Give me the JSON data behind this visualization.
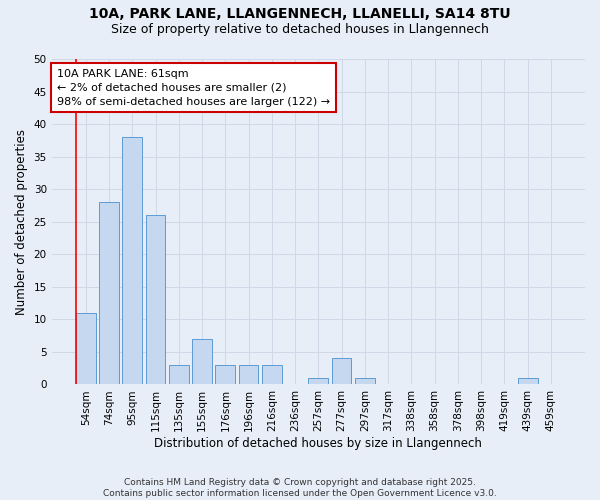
{
  "title1": "10A, PARK LANE, LLANGENNECH, LLANELLI, SA14 8TU",
  "title2": "Size of property relative to detached houses in Llangennech",
  "xlabel": "Distribution of detached houses by size in Llangennech",
  "ylabel": "Number of detached properties",
  "categories": [
    "54sqm",
    "74sqm",
    "95sqm",
    "115sqm",
    "135sqm",
    "155sqm",
    "176sqm",
    "196sqm",
    "216sqm",
    "236sqm",
    "257sqm",
    "277sqm",
    "297sqm",
    "317sqm",
    "338sqm",
    "358sqm",
    "378sqm",
    "398sqm",
    "419sqm",
    "439sqm",
    "459sqm"
  ],
  "values": [
    11,
    28,
    38,
    26,
    3,
    7,
    3,
    3,
    3,
    0,
    1,
    4,
    1,
    0,
    0,
    0,
    0,
    0,
    0,
    1,
    0
  ],
  "bar_color": "#c5d8f0",
  "bar_edge_color": "#5b9bd5",
  "annotation_title": "10A PARK LANE: 61sqm",
  "annotation_line1": "← 2% of detached houses are smaller (2)",
  "annotation_line2": "98% of semi-detached houses are larger (122) →",
  "annotation_box_color": "#ffffff",
  "annotation_box_edge": "#cc0000",
  "ylim": [
    0,
    50
  ],
  "yticks": [
    0,
    5,
    10,
    15,
    20,
    25,
    30,
    35,
    40,
    45,
    50
  ],
  "grid_color": "#d0d8e8",
  "bg_color": "#e8eef8",
  "footer": "Contains HM Land Registry data © Crown copyright and database right 2025.\nContains public sector information licensed under the Open Government Licence v3.0.",
  "title_fontsize": 10,
  "subtitle_fontsize": 9,
  "axis_label_fontsize": 8.5,
  "tick_fontsize": 7.5,
  "annotation_fontsize": 8,
  "footer_fontsize": 6.5
}
